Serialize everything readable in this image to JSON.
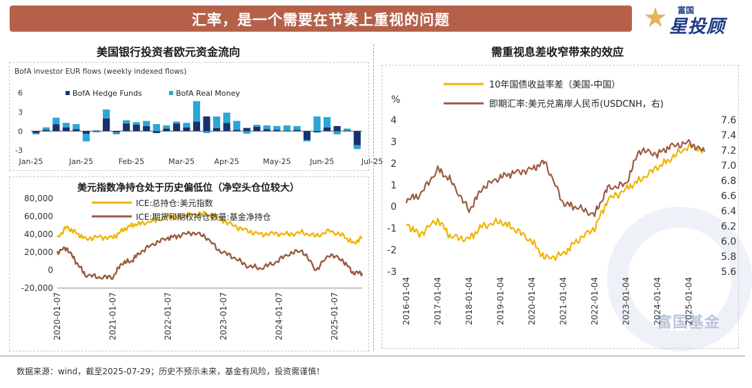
{
  "banner": {
    "title": "汇率，是一个需要在节奏上重视的问题"
  },
  "logo": {
    "small": "富国",
    "big": "星投顾"
  },
  "watermark": "富国基金",
  "footer": "数据来源：wind，截至2025-07-29；历史不预示未来，基金有风险，投资需谨慎！",
  "colors": {
    "banner": "#b5614a",
    "hedge": "#17336e",
    "real": "#2aa7d6",
    "orange": "#f0b400",
    "brown": "#9a5a3e"
  },
  "chart_data": [
    {
      "type": "bar",
      "section_title": "美国银行投资者欧元资金流向",
      "title": "BofA investor EUR flows (weekly indexed flows)",
      "x_tick_labels": [
        "Jan-25",
        "Jan-25",
        "Feb-25",
        "Mar-25",
        "Apr-25",
        "May-25",
        "Jun-25",
        "Jul-25"
      ],
      "x_tick_positions": [
        0,
        5,
        10,
        15,
        19.5,
        24.5,
        29,
        34
      ],
      "y_ticks": [
        6,
        3,
        0,
        -3
      ],
      "ylim": [
        -3.2,
        6.5
      ],
      "legend": [
        "BofA Hedge Funds",
        "BofA Real Money"
      ],
      "legend_position": "top",
      "series": [
        {
          "name": "BofA Hedge Funds",
          "values": [
            -0.3,
            0.2,
            1.1,
            0.6,
            0.3,
            -0.4,
            0.1,
            2.0,
            -0.2,
            1.2,
            1.0,
            0.8,
            -0.3,
            0.4,
            1.2,
            0.6,
            1.5,
            2.3,
            0.5,
            1.3,
            0.2,
            0.5,
            0.7,
            0.3,
            0.2,
            0.1,
            0.2,
            -1.4,
            -0.2,
            0.6,
            0.8,
            0.1,
            -2.2
          ]
        },
        {
          "name": "BofA Real Money",
          "values": [
            -0.2,
            0.4,
            1.0,
            0.7,
            0.8,
            -1.2,
            -0.2,
            1.4,
            -0.3,
            0.5,
            0.4,
            0.8,
            1.1,
            0.5,
            0.3,
            0.7,
            3.2,
            -0.3,
            1.8,
            1.6,
            1.4,
            -0.4,
            0.3,
            0.6,
            0.6,
            0.8,
            0.6,
            -0.2,
            2.3,
            1.6,
            -0.5,
            0.3,
            -0.6
          ]
        }
      ]
    },
    {
      "type": "line",
      "title": "美元指数净持仓处于历史偏低位（净空头仓位较大）",
      "legend_position": "top",
      "x_start": "2020-01-07",
      "x_end": "2025-07-29",
      "x_tick_labels": [
        "2020-01-07",
        "2021-01-07",
        "2022-01-07",
        "2023-01-07",
        "2024-01-07",
        "2025-01-07"
      ],
      "y_tick_labels": [
        "80,000",
        "60,000",
        "40,000",
        "20,000",
        "0",
        "-20,000"
      ],
      "ylim": [
        -20000,
        80000
      ],
      "series": [
        {
          "name": "ICE:总持仓:美元指数",
          "x": [
            "2020-01",
            "2020-03",
            "2020-05",
            "2020-07",
            "2020-10",
            "2021-01",
            "2021-03",
            "2021-05",
            "2021-07",
            "2021-10",
            "2022-01",
            "2022-03",
            "2022-06",
            "2022-09",
            "2022-12",
            "2023-03",
            "2023-06",
            "2023-09",
            "2023-12",
            "2024-03",
            "2024-06",
            "2024-09",
            "2024-12",
            "2025-03",
            "2025-05",
            "2025-07"
          ],
          "values": [
            36000,
            48000,
            42000,
            35000,
            37000,
            36000,
            44000,
            50000,
            52000,
            55000,
            60000,
            59000,
            62000,
            63000,
            58000,
            50000,
            44000,
            40000,
            41000,
            40000,
            42000,
            38000,
            44000,
            38000,
            30000,
            36000
          ]
        },
        {
          "name": "ICE:期货和期权持仓数量:基金净持仓",
          "x": [
            "2020-01",
            "2020-03",
            "2020-05",
            "2020-07",
            "2020-10",
            "2021-01",
            "2021-03",
            "2021-05",
            "2021-07",
            "2021-10",
            "2022-01",
            "2022-03",
            "2022-06",
            "2022-09",
            "2022-12",
            "2023-03",
            "2023-06",
            "2023-09",
            "2023-12",
            "2024-03",
            "2024-06",
            "2024-09",
            "2024-12",
            "2025-03",
            "2025-05",
            "2025-07"
          ],
          "values": [
            20000,
            25000,
            10000,
            -5000,
            -8000,
            -8000,
            8000,
            10000,
            20000,
            30000,
            36000,
            38000,
            42000,
            38000,
            22000,
            15000,
            5000,
            2000,
            8000,
            18000,
            22000,
            0,
            18000,
            10000,
            -3000,
            -3000
          ]
        }
      ]
    },
    {
      "type": "line",
      "section_title": "需重视息差收窄带来的效应",
      "y_label": "%",
      "legend_position": "top",
      "x_tick_labels": [
        "2016-01-04",
        "2017-01-04",
        "2018-01-04",
        "2019-01-04",
        "2020-01-04",
        "2021-01-04",
        "2022-01-04",
        "2023-01-04",
        "2024-01-04",
        "2025-01-04"
      ],
      "y_left_ticks": [
        4,
        3,
        2,
        1,
        0,
        -1,
        -2,
        -3
      ],
      "y_right_tick_labels": [
        "7.6",
        "7.4",
        "7.2",
        "7.0",
        "6.8",
        "6.6",
        "6.4",
        "6.2",
        "6.0",
        "5.8",
        "5.6"
      ],
      "ylim_left": [
        -3,
        4
      ],
      "ylim_right": [
        5.6,
        7.6
      ],
      "series": [
        {
          "name": "10年国债收益率差（美国-中国）",
          "axis": "left",
          "x": [
            "2016-01",
            "2016-06",
            "2017-01",
            "2017-06",
            "2018-01",
            "2018-06",
            "2019-01",
            "2019-06",
            "2020-01",
            "2020-06",
            "2021-01",
            "2021-06",
            "2022-01",
            "2022-06",
            "2023-01",
            "2023-06",
            "2024-01",
            "2024-06",
            "2025-01",
            "2025-07"
          ],
          "values": [
            -0.8,
            -1.3,
            -0.6,
            -1.4,
            -1.5,
            -0.9,
            -0.7,
            -1.0,
            -1.6,
            -2.4,
            -2.2,
            -1.6,
            -1.0,
            0.3,
            0.8,
            1.2,
            1.8,
            2.2,
            2.8,
            2.6
          ]
        },
        {
          "name": "即期汇率:美元兑离岸人民币(USDCNH，右)",
          "axis": "right",
          "x": [
            "2016-01",
            "2016-06",
            "2017-01",
            "2017-06",
            "2018-01",
            "2018-06",
            "2019-01",
            "2019-06",
            "2020-01",
            "2020-06",
            "2021-01",
            "2021-06",
            "2022-01",
            "2022-06",
            "2023-01",
            "2023-06",
            "2024-01",
            "2024-06",
            "2025-01",
            "2025-07"
          ],
          "values": [
            6.55,
            6.6,
            6.95,
            6.8,
            6.4,
            6.7,
            6.85,
            6.9,
            6.95,
            7.05,
            6.5,
            6.45,
            6.35,
            6.7,
            6.75,
            7.2,
            7.15,
            7.25,
            7.3,
            7.18
          ]
        }
      ]
    }
  ]
}
